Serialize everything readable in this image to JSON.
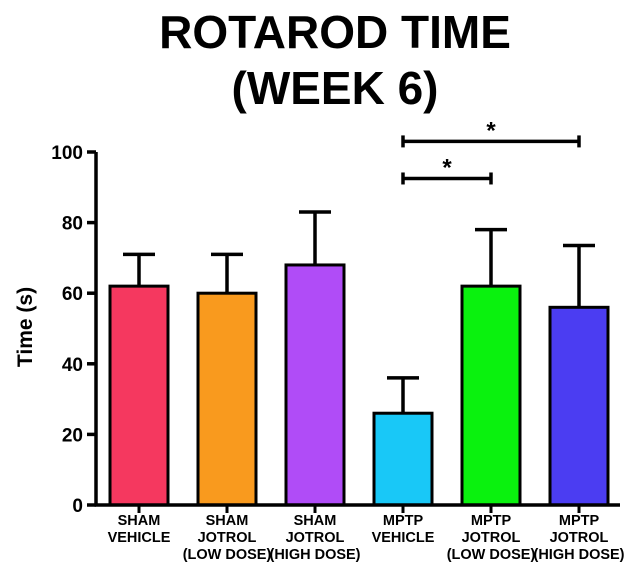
{
  "chart_data": {
    "type": "bar",
    "title_lines": [
      "ROTAROD TIME",
      "(WEEK 6)"
    ],
    "ylabel": "Time (s)",
    "xlabel": "",
    "ylim": [
      0,
      100
    ],
    "yticks": [
      "0",
      "20",
      "40",
      "60",
      "80",
      "100"
    ],
    "categories": [
      [
        "SHAM",
        "VEHICLE"
      ],
      [
        "SHAM",
        "JOTROL",
        "(LOW DOSE)"
      ],
      [
        "SHAM",
        "JOTROL",
        "(HIGH DOSE)"
      ],
      [
        "MPTP",
        "VEHICLE"
      ],
      [
        "MPTP",
        "JOTROL",
        "(LOW DOSE)"
      ],
      [
        "MPTP",
        "JOTROL",
        "(HIGH DOSE)"
      ]
    ],
    "values": [
      62,
      60,
      68,
      26,
      62,
      56
    ],
    "errors": [
      9,
      11,
      15,
      10,
      16,
      17.5
    ],
    "colors": [
      "#f5385f",
      "#f99a1e",
      "#b04cf7",
      "#19c8f7",
      "#0af20e",
      "#4b3df2"
    ],
    "significance": [
      {
        "from": 3,
        "to": 4,
        "label": "*",
        "level": 92.5
      },
      {
        "from": 3,
        "to": 5,
        "label": "*",
        "level": 103
      }
    ]
  }
}
